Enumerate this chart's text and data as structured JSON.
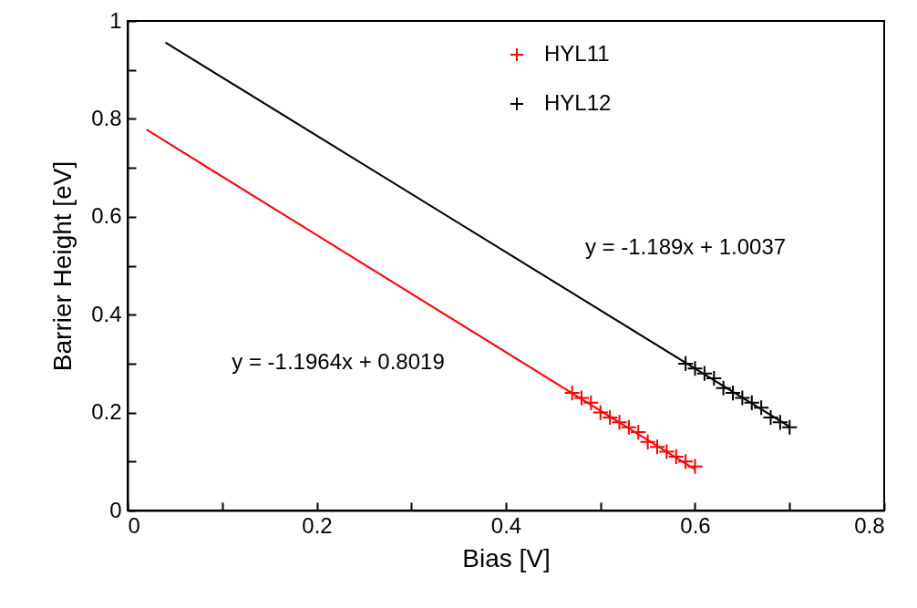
{
  "chart_data": {
    "type": "scatter",
    "xlabel": "Bias [V]",
    "ylabel": "Barrier Height [eV]",
    "xlim": [
      0,
      0.8
    ],
    "ylim": [
      0,
      1
    ],
    "xticks": [
      0,
      {
        "value": 0.1,
        "label": null
      },
      0.2,
      {
        "value": 0.3,
        "label": null
      },
      0.4,
      {
        "value": 0.5,
        "label": null
      },
      0.6,
      {
        "value": 0.7,
        "label": null
      },
      0.8
    ],
    "yticks": [
      0,
      {
        "value": 0.1,
        "label": null
      },
      0.2,
      {
        "value": 0.3,
        "label": null
      },
      0.4,
      {
        "value": 0.5,
        "label": null
      },
      0.6,
      {
        "value": 0.7,
        "label": null
      },
      0.8,
      {
        "value": 0.9,
        "label": null
      },
      1
    ],
    "grid": false,
    "legend": "top",
    "series": [
      {
        "name": "HYL11",
        "color": "#ff0000",
        "marker": "cross",
        "x": [
          0.47,
          0.48,
          0.49,
          0.5,
          0.51,
          0.52,
          0.53,
          0.54,
          0.55,
          0.56,
          0.57,
          0.58,
          0.59,
          0.6
        ],
        "values": [
          0.24,
          0.23,
          0.22,
          0.2,
          0.19,
          0.18,
          0.17,
          0.16,
          0.14,
          0.13,
          0.12,
          0.11,
          0.1,
          0.09
        ]
      },
      {
        "name": "HYL12",
        "color": "#000000",
        "marker": "cross",
        "x": [
          0.59,
          0.6,
          0.61,
          0.62,
          0.63,
          0.64,
          0.65,
          0.66,
          0.67,
          0.68,
          0.69,
          0.7
        ],
        "values": [
          0.3,
          0.29,
          0.28,
          0.27,
          0.25,
          0.24,
          0.23,
          0.22,
          0.21,
          0.19,
          0.18,
          0.17
        ]
      },
      {
        "color": "#ff0000",
        "type": "line",
        "x": [
          0.02,
          0.6
        ],
        "values": [
          0.778,
          0.084
        ]
      },
      {
        "color": "#000000",
        "type": "line",
        "x": [
          0.04,
          0.7
        ],
        "values": [
          0.956,
          0.171
        ]
      }
    ],
    "annotations": [
      "y = -1.1964x + 0.8019",
      "y = -1.189x + 1.0037"
    ]
  }
}
